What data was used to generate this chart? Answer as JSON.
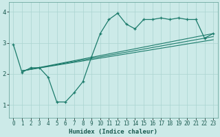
{
  "xlabel": "Humidex (Indice chaleur)",
  "bg_color": "#cceae8",
  "grid_color": "#aad4d0",
  "line_color": "#1a7a6a",
  "xlim": [
    -0.5,
    23.5
  ],
  "ylim": [
    0.6,
    4.3
  ],
  "xticks": [
    0,
    1,
    2,
    3,
    4,
    5,
    6,
    7,
    8,
    9,
    10,
    11,
    12,
    13,
    14,
    15,
    16,
    17,
    18,
    19,
    20,
    21,
    22,
    23
  ],
  "yticks": [
    1,
    2,
    3,
    4
  ],
  "line_main_x": [
    0,
    1,
    2,
    3,
    4,
    5,
    6,
    7,
    8,
    9,
    10,
    11,
    12,
    13,
    14,
    15,
    16,
    17,
    18,
    19,
    20,
    21,
    22,
    23
  ],
  "line_main_y": [
    2.95,
    2.05,
    2.2,
    2.2,
    1.9,
    1.1,
    1.1,
    1.4,
    1.75,
    2.55,
    3.3,
    3.75,
    3.95,
    3.6,
    3.45,
    3.75,
    3.75,
    3.8,
    3.75,
    3.8,
    3.75,
    3.75,
    3.15,
    3.3
  ],
  "line2_x": [
    1,
    23
  ],
  "line2_y": [
    2.1,
    3.3
  ],
  "line3_x": [
    1,
    23
  ],
  "line3_y": [
    2.1,
    3.2
  ],
  "line4_x": [
    1,
    23
  ],
  "line4_y": [
    2.1,
    3.1
  ]
}
